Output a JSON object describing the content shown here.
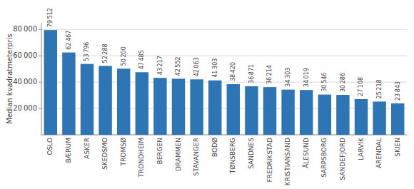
{
  "chart_data": {
    "type": "bar",
    "ylabel": "Median kvadratmeterpris",
    "categories": [
      "OSLO",
      "BÆRUM",
      "ASKER",
      "SKEDSMO",
      "TROMSØ",
      "TRONDHEIM",
      "BERGEN",
      "DRAMMEN",
      "STAVANGER",
      "BODØ",
      "TØNSBERG",
      "SANDNES",
      "FREDRIKSTAD",
      "KRISTIANSAND",
      "ÅLESUND",
      "SARPSBORG",
      "SANDEFJORD",
      "LARVIK",
      "ARENDAL",
      "SKIEN"
    ],
    "values": [
      79512,
      62467,
      53796,
      52288,
      50200,
      47485,
      43217,
      42552,
      42063,
      41303,
      38420,
      36871,
      36214,
      34303,
      34019,
      30546,
      30286,
      27108,
      25218,
      23843
    ],
    "value_labels": [
      "79 512",
      "62 467",
      "53 796",
      "52 288",
      "50 200",
      "47 485",
      "43 217",
      "42 552",
      "42 063",
      "41 303",
      "38 420",
      "36 871",
      "36 214",
      "34 303",
      "34 019",
      "30 546",
      "30 286",
      "27 108",
      "25 218",
      "23 843"
    ],
    "data_labels": true,
    "color": "#2e75b6",
    "ylim": [
      0,
      85000
    ],
    "yticks": [
      {
        "value": 20000,
        "label": "20 000"
      },
      {
        "value": 40000,
        "label": "40 000"
      },
      {
        "value": 60000,
        "label": "60 000"
      },
      {
        "value": 80000,
        "label": "80 000"
      }
    ],
    "grid": true
  }
}
